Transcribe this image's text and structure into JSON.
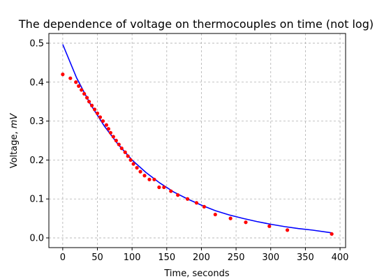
{
  "chart_data": {
    "type": "scatter",
    "title": "The dependence of voltage on thermocouples on time (not log)",
    "xlabel": "Time, seconds",
    "ylabel_main": "Voltage, ",
    "ylabel_unit": "mV",
    "xlim": [
      -20,
      408
    ],
    "ylim": [
      -0.025,
      0.525
    ],
    "x_ticks": [
      0,
      50,
      100,
      150,
      200,
      250,
      300,
      350,
      400
    ],
    "y_ticks": [
      0.0,
      0.1,
      0.2,
      0.3,
      0.4,
      0.5
    ],
    "grid": true,
    "colors": {
      "points": "#ff0000",
      "fit": "#0000ff",
      "grid": "#b0b0b0"
    },
    "series": [
      {
        "kind": "points",
        "x": [
          0,
          11,
          19,
          23,
          27,
          31,
          35,
          38,
          42,
          46,
          50,
          54,
          58,
          63,
          66,
          69,
          73,
          77,
          81,
          85,
          90,
          94,
          98,
          102,
          107,
          112,
          118,
          125,
          132,
          139,
          146,
          156,
          166,
          180,
          193,
          204,
          220,
          242,
          264,
          298,
          324,
          388
        ],
        "y": [
          0.42,
          0.41,
          0.4,
          0.39,
          0.38,
          0.37,
          0.36,
          0.35,
          0.34,
          0.33,
          0.32,
          0.31,
          0.3,
          0.29,
          0.28,
          0.27,
          0.26,
          0.25,
          0.24,
          0.23,
          0.22,
          0.21,
          0.2,
          0.19,
          0.18,
          0.17,
          0.16,
          0.15,
          0.15,
          0.13,
          0.13,
          0.12,
          0.11,
          0.1,
          0.09,
          0.08,
          0.06,
          0.05,
          0.04,
          0.03,
          0.02,
          0.01
        ]
      },
      {
        "kind": "line",
        "x": [
          0,
          20,
          40,
          60,
          80,
          100,
          120,
          140,
          160,
          180,
          200,
          220,
          240,
          260,
          280,
          300,
          320,
          340,
          360,
          388
        ],
        "y": [
          0.497,
          0.411,
          0.343,
          0.287,
          0.24,
          0.2,
          0.168,
          0.141,
          0.118,
          0.1,
          0.084,
          0.07,
          0.059,
          0.05,
          0.042,
          0.035,
          0.029,
          0.024,
          0.02,
          0.013
        ]
      }
    ]
  }
}
